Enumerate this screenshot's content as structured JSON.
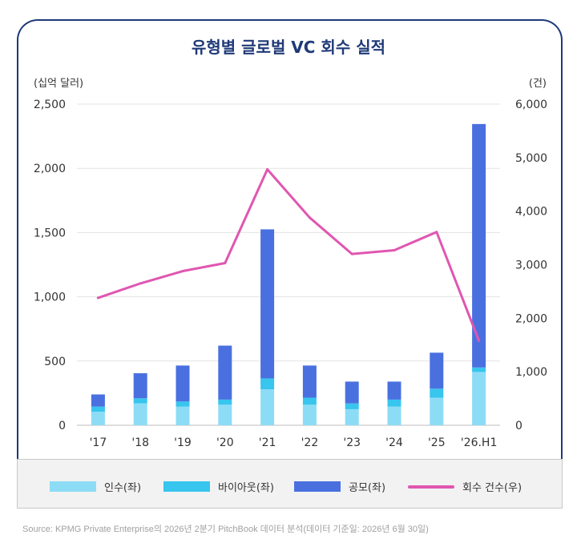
{
  "title": "유형별 글로벌 VC 회수 실적",
  "source": "Source: KPMG Private Enterprise의 2026년 2분기 PitchBook 데이터 분석(데이터 기준일: 2026년 6월 30일)",
  "chart_data": {
    "type": "bar",
    "stacked": true,
    "title": "유형별 글로벌 VC 회수 실적",
    "y_left_unit": "(십억 달러)",
    "y_right_unit": "(건)",
    "categories": [
      "'17",
      "'18",
      "'19",
      "'20",
      "'21",
      "'22",
      "'23",
      "'24",
      "'25",
      "'26.H1"
    ],
    "y_left_ticks": [
      "0",
      "500",
      "1,000",
      "1,500",
      "2,000",
      "2,500"
    ],
    "y_right_ticks": [
      "0",
      "1,000",
      "2,000",
      "3,000",
      "4,000",
      "5,000",
      "6,000"
    ],
    "ylim_left": [
      0,
      2500
    ],
    "ylim_right": [
      0,
      6000
    ],
    "grid": true,
    "legend_position": "bottom",
    "series": [
      {
        "name": "인수(좌)",
        "axis": "left",
        "kind": "bar",
        "color": "#8ddcf5",
        "values": [
          105,
          170,
          145,
          160,
          280,
          160,
          125,
          145,
          215,
          415
        ]
      },
      {
        "name": "바이아웃(좌)",
        "axis": "left",
        "kind": "bar",
        "color": "#38c5ee",
        "values": [
          40,
          40,
          40,
          40,
          85,
          55,
          45,
          55,
          70,
          35
        ]
      },
      {
        "name": "공모(좌)",
        "axis": "left",
        "kind": "bar",
        "color": "#4a70e0",
        "values": [
          95,
          195,
          280,
          420,
          1160,
          250,
          170,
          140,
          280,
          1895
        ]
      },
      {
        "name": "회수 건수(우)",
        "axis": "right",
        "kind": "line",
        "color": "#e056b0",
        "values": [
          2380,
          2650,
          2880,
          3030,
          4780,
          3880,
          3200,
          3270,
          3610,
          1580
        ]
      }
    ]
  }
}
